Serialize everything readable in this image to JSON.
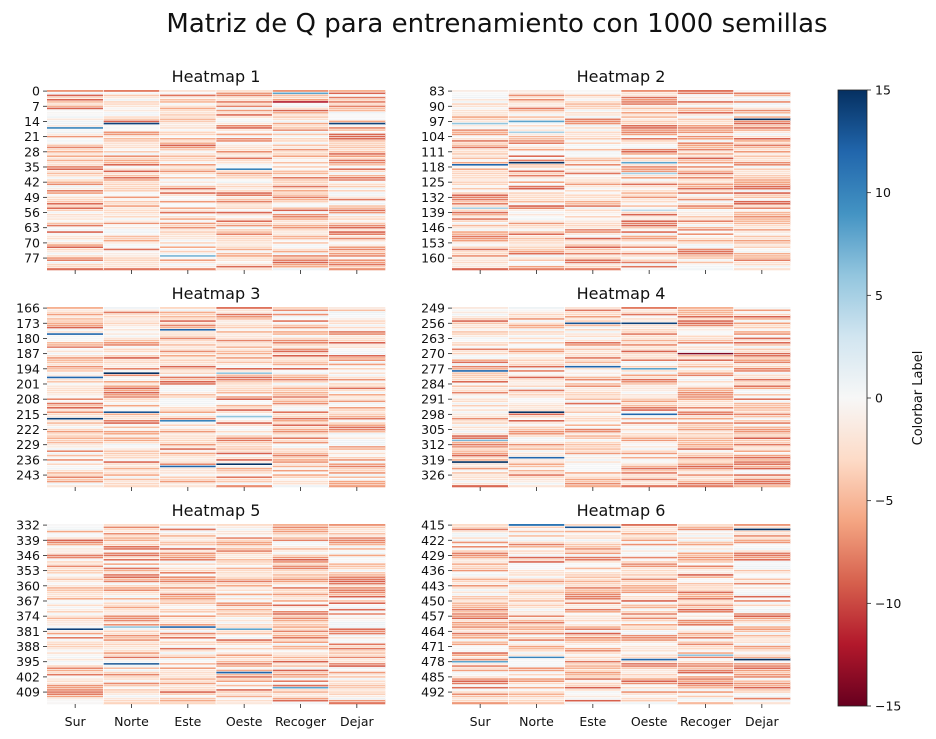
{
  "chart_data": {
    "type": "heatmap",
    "title": "Matriz de Q para entrenamiento con 1000 semillas",
    "columns": [
      "Sur",
      "Norte",
      "Este",
      "Oeste",
      "Recoger",
      "Dejar"
    ],
    "colormap": "RdBu",
    "vmin": -15,
    "vmax": 15,
    "colorbar": {
      "label": "Colorbar Label",
      "ticks": [
        15,
        10,
        5,
        0,
        -5,
        -10,
        -15
      ],
      "tick_labels": [
        "15",
        "10",
        "5",
        "0",
        "−5",
        "−10",
        "−15"
      ]
    },
    "panels": [
      {
        "title": "Heatmap 1",
        "row_start": 0,
        "row_end": 82,
        "ytick_labels": [
          "0",
          "7",
          "14",
          "21",
          "28",
          "35",
          "42",
          "49",
          "56",
          "63",
          "70",
          "77"
        ],
        "xtick_labels_visible": false,
        "highlight_rows": [
          {
            "row": 1,
            "col": "Recoger",
            "value": 8
          },
          {
            "row": 5,
            "col": "Recoger",
            "value": -12
          },
          {
            "row": 15,
            "col": "Norte",
            "value": 14
          },
          {
            "row": 15,
            "col": "Dejar",
            "value": 14
          },
          {
            "row": 17,
            "col": "Sur",
            "value": 10
          },
          {
            "row": 36,
            "col": "Oeste",
            "value": 10
          },
          {
            "row": 76,
            "col": "Este",
            "value": 7
          }
        ]
      },
      {
        "title": "Heatmap 2",
        "row_start": 83,
        "row_end": 165,
        "ytick_labels": [
          "83",
          "90",
          "97",
          "104",
          "111",
          "118",
          "125",
          "132",
          "139",
          "146",
          "153",
          "160"
        ],
        "xtick_labels_visible": false,
        "highlight_rows": [
          {
            "row": 96,
            "col": "Dejar",
            "value": 15
          },
          {
            "row": 97,
            "col": "Norte",
            "value": 8
          },
          {
            "row": 98,
            "col": "Sur",
            "value": 6
          },
          {
            "row": 102,
            "col": "Norte",
            "value": 5
          },
          {
            "row": 116,
            "col": "Norte",
            "value": 15
          },
          {
            "row": 117,
            "col": "Sur",
            "value": 12
          },
          {
            "row": 116,
            "col": "Oeste",
            "value": 8
          },
          {
            "row": 121,
            "col": "Oeste",
            "value": 5
          },
          {
            "row": 137,
            "col": "Sur",
            "value": 5
          },
          {
            "row": 138,
            "col": "Oeste",
            "value": 4
          }
        ]
      },
      {
        "title": "Heatmap 3",
        "row_start": 166,
        "row_end": 248,
        "ytick_labels": [
          "166",
          "173",
          "180",
          "187",
          "194",
          "201",
          "208",
          "215",
          "222",
          "229",
          "236",
          "243"
        ],
        "xtick_labels_visible": false,
        "highlight_rows": [
          {
            "row": 176,
            "col": "Este",
            "value": 12
          },
          {
            "row": 178,
            "col": "Sur",
            "value": 12
          },
          {
            "row": 196,
            "col": "Norte",
            "value": 15
          },
          {
            "row": 198,
            "col": "Sur",
            "value": 12
          },
          {
            "row": 196,
            "col": "Oeste",
            "value": 6
          },
          {
            "row": 214,
            "col": "Norte",
            "value": 13
          },
          {
            "row": 217,
            "col": "Sur",
            "value": 14
          },
          {
            "row": 218,
            "col": "Este",
            "value": 10
          },
          {
            "row": 216,
            "col": "Oeste",
            "value": 6
          },
          {
            "row": 238,
            "col": "Oeste",
            "value": 15
          },
          {
            "row": 239,
            "col": "Este",
            "value": 12
          }
        ]
      },
      {
        "title": "Heatmap 4",
        "row_start": 249,
        "row_end": 331,
        "ytick_labels": [
          "249",
          "256",
          "263",
          "270",
          "277",
          "284",
          "291",
          "298",
          "305",
          "312",
          "319",
          "326"
        ],
        "xtick_labels_visible": false,
        "highlight_rows": [
          {
            "row": 256,
            "col": "Este",
            "value": 13
          },
          {
            "row": 256,
            "col": "Oeste",
            "value": 14
          },
          {
            "row": 270,
            "col": "Recoger",
            "value": -14
          },
          {
            "row": 276,
            "col": "Este",
            "value": 12
          },
          {
            "row": 278,
            "col": "Sur",
            "value": 12
          },
          {
            "row": 277,
            "col": "Oeste",
            "value": 8
          },
          {
            "row": 297,
            "col": "Norte",
            "value": 15
          },
          {
            "row": 298,
            "col": "Oeste",
            "value": 12
          },
          {
            "row": 310,
            "col": "Sur",
            "value": 7
          },
          {
            "row": 318,
            "col": "Norte",
            "value": 12
          },
          {
            "row": 320,
            "col": "Sur",
            "value": 15
          }
        ]
      },
      {
        "title": "Heatmap 5",
        "row_start": 332,
        "row_end": 414,
        "ytick_labels": [
          "332",
          "339",
          "346",
          "353",
          "360",
          "367",
          "374",
          "381",
          "388",
          "395",
          "402",
          "409"
        ],
        "xtick_labels_visible": true,
        "highlight_rows": [
          {
            "row": 379,
            "col": "Este",
            "value": 12
          },
          {
            "row": 380,
            "col": "Sur",
            "value": 14
          },
          {
            "row": 380,
            "col": "Oeste",
            "value": 8
          },
          {
            "row": 379,
            "col": "Norte",
            "value": 6
          },
          {
            "row": 396,
            "col": "Norte",
            "value": 13
          },
          {
            "row": 400,
            "col": "Oeste",
            "value": 12
          },
          {
            "row": 407,
            "col": "Recoger",
            "value": 8
          }
        ]
      },
      {
        "title": "Heatmap 6",
        "row_start": 415,
        "row_end": 497,
        "ytick_labels": [
          "415",
          "422",
          "429",
          "436",
          "443",
          "450",
          "457",
          "464",
          "471",
          "478",
          "485",
          "492"
        ],
        "xtick_labels_visible": true,
        "highlight_rows": [
          {
            "row": 415,
            "col": "Norte",
            "value": 11
          },
          {
            "row": 416,
            "col": "Este",
            "value": 13
          },
          {
            "row": 417,
            "col": "Dejar",
            "value": 15
          },
          {
            "row": 475,
            "col": "Recoger",
            "value": 6
          },
          {
            "row": 476,
            "col": "Norte",
            "value": 10
          },
          {
            "row": 477,
            "col": "Dejar",
            "value": 15
          },
          {
            "row": 477,
            "col": "Oeste",
            "value": 12
          },
          {
            "row": 478,
            "col": "Sur",
            "value": 8
          }
        ]
      }
    ]
  }
}
